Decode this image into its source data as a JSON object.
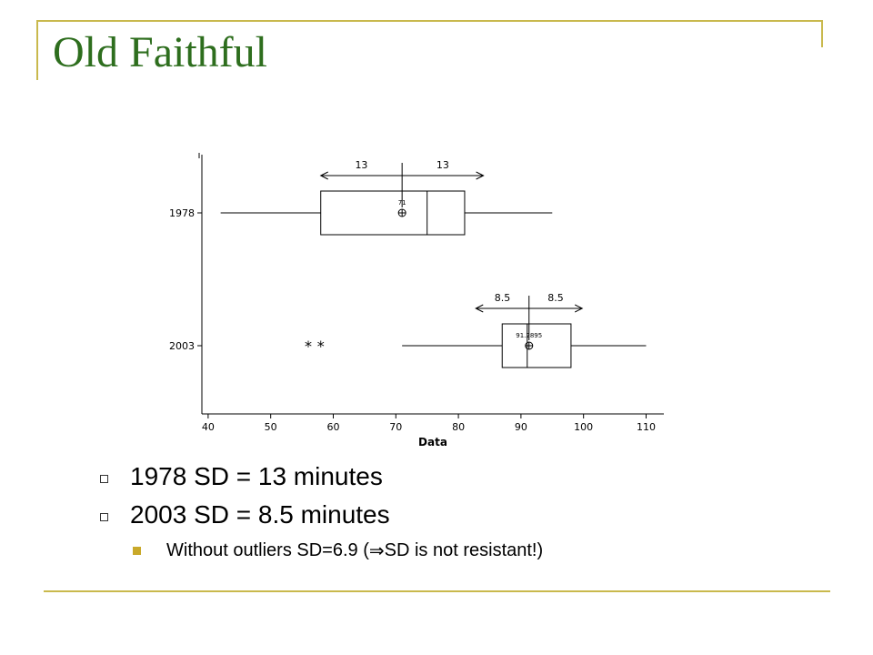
{
  "slide": {
    "title": "Old Faithful",
    "accent_color": "#c9b94d",
    "title_color": "#2e6e1e"
  },
  "bullets": [
    {
      "text": "1978 SD = 13 minutes"
    },
    {
      "text": "2003 SD = 8.5 minutes"
    }
  ],
  "sub_bullet": {
    "before": "Without outliers SD=6.9  (",
    "symbol": "⇒",
    "after": "SD is not resistant!)"
  },
  "chart_data": {
    "type": "boxplot",
    "xlabel": "Data",
    "xlim": [
      39,
      114
    ],
    "xticks": [
      40,
      50,
      60,
      70,
      80,
      90,
      100,
      110
    ],
    "series": [
      {
        "name": "1978",
        "whisker_low": 42,
        "q1": 58,
        "median": 75,
        "q3": 81,
        "whisker_high": 95,
        "mean": 71,
        "mean_label": "71",
        "sd": 13,
        "sd_labels": [
          "13",
          "13"
        ],
        "outliers": []
      },
      {
        "name": "2003",
        "whisker_low": 71,
        "q1": 87,
        "median": 91,
        "q3": 98,
        "whisker_high": 110,
        "mean": 91.2895,
        "mean_label": "91.2895",
        "sd": 8.5,
        "sd_labels": [
          "8.5",
          "8.5"
        ],
        "outliers": [
          56,
          58
        ]
      }
    ]
  }
}
